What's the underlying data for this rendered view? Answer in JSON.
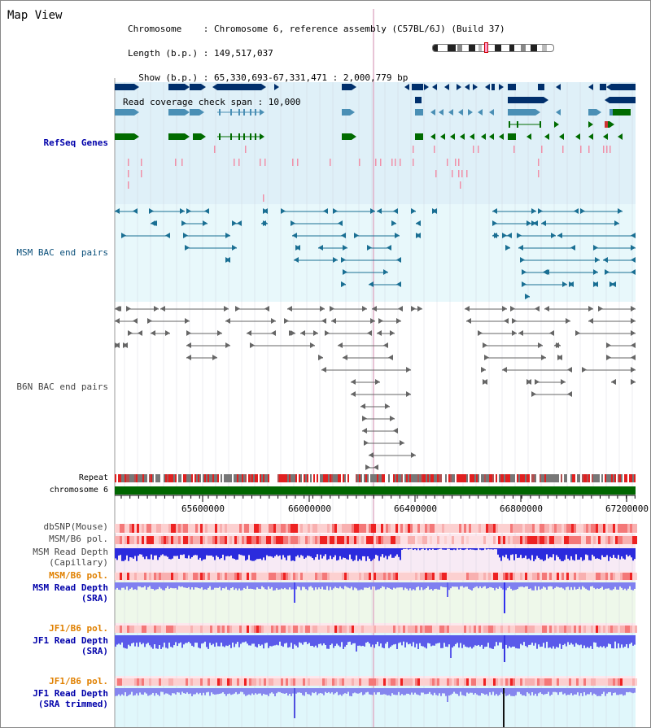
{
  "view_title": "Map View",
  "info": {
    "chromosome": "Chromosome    : Chromosome 6, reference assembly (C57BL/6J) (Build 37)",
    "length": "Length (b.p.) : 149,517,037",
    "show": "  Show (b.p.) : 65,330,693-67,331,471 : 2,000,779 bp",
    "span": "Read coverage check span : 10,000"
  },
  "tracks": {
    "refseq": "RefSeq Genes",
    "msm_bac": "MSM BAC end pairs",
    "b6n_bac": "B6N BAC end pairs",
    "repeat": "Repeat",
    "chromosome": "chromosome 6",
    "dbsnp": "dbSNP(Mouse)",
    "msm_b6_pol": "MSM/B6 pol.",
    "msm_depth_cap_1": "MSM Read Depth",
    "msm_depth_cap_2": "(Capillary)",
    "msm_b6_pol_2": "MSM/B6 pol.",
    "msm_depth_sra_1": "MSM Read Depth",
    "msm_depth_sra_2": "(SRA)",
    "jf1_b6_pol": "JF1/B6 pol.",
    "jf1_depth_sra_1": "JF1 Read Depth",
    "jf1_depth_sra_2": "(SRA)",
    "jf1_b6_pol_2": "JF1/B6 pol.",
    "jf1_depth_trim_1": "JF1 Read Depth",
    "jf1_depth_trim_2": "(SRA trimmed)"
  },
  "axis": {
    "ticks": [
      "65600000",
      "66000000",
      "66400000",
      "66800000",
      "67200000"
    ]
  },
  "colors": {
    "gene_navy": "#002f6c",
    "gene_steel": "#4a8fb5",
    "gene_green": "#006b00",
    "msm_bac": "#1a6f93",
    "b6n_bac": "#666666",
    "refseq_bg": "#dff0f8",
    "msm_bg": "#e8f8fb",
    "depth_blue": "#2a2ae0",
    "depth_light": "#8080f0",
    "pol_red": "#e83030"
  }
}
